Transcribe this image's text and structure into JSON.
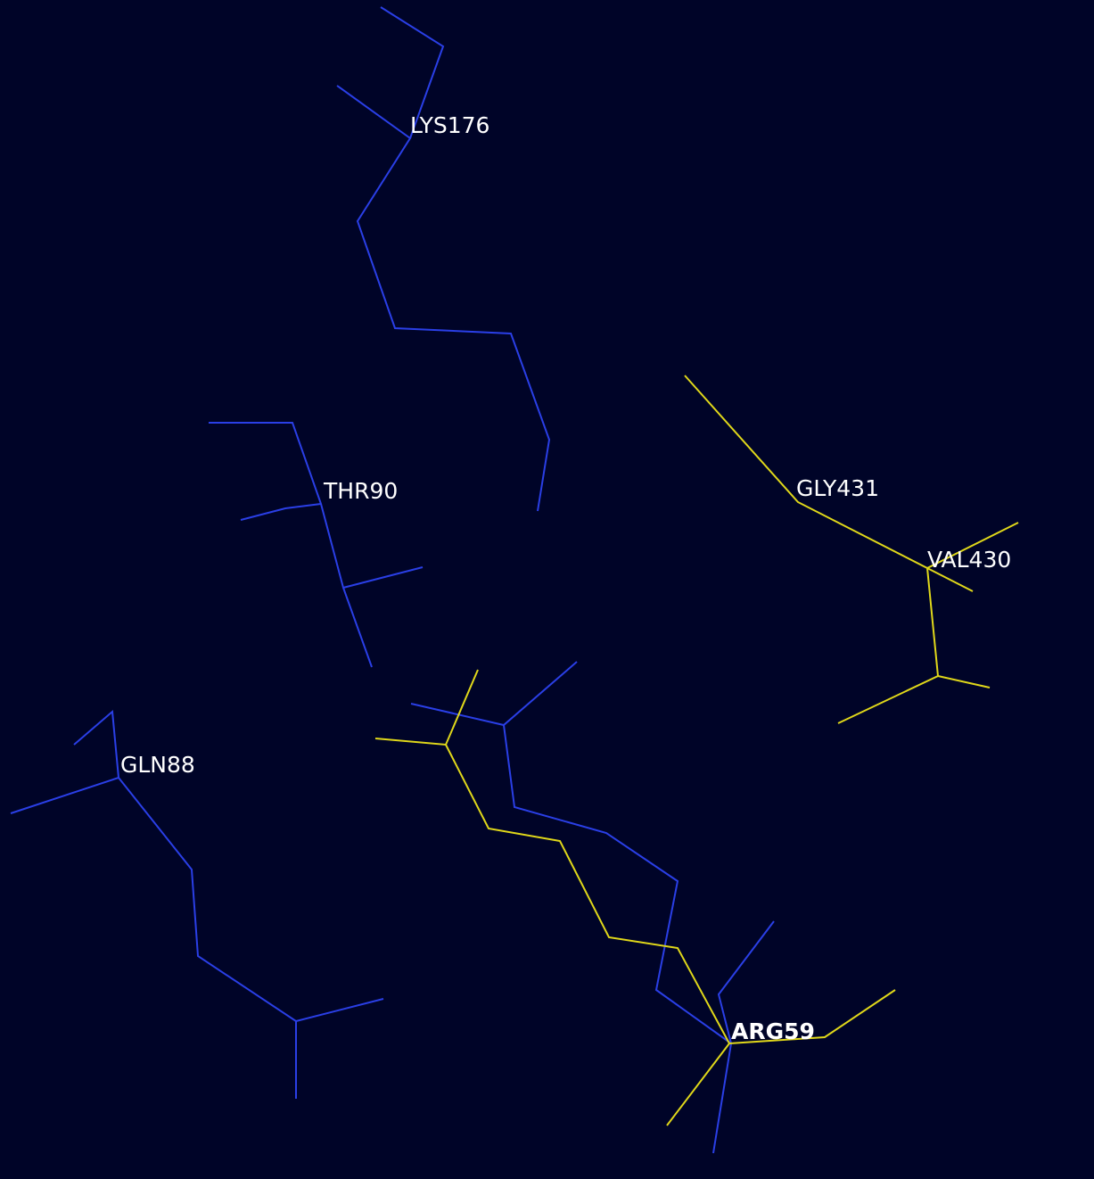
{
  "labels": [
    "LYS176",
    "THR90",
    "GLY431",
    "VAL430",
    "GLN88",
    "ARG59"
  ]
}
